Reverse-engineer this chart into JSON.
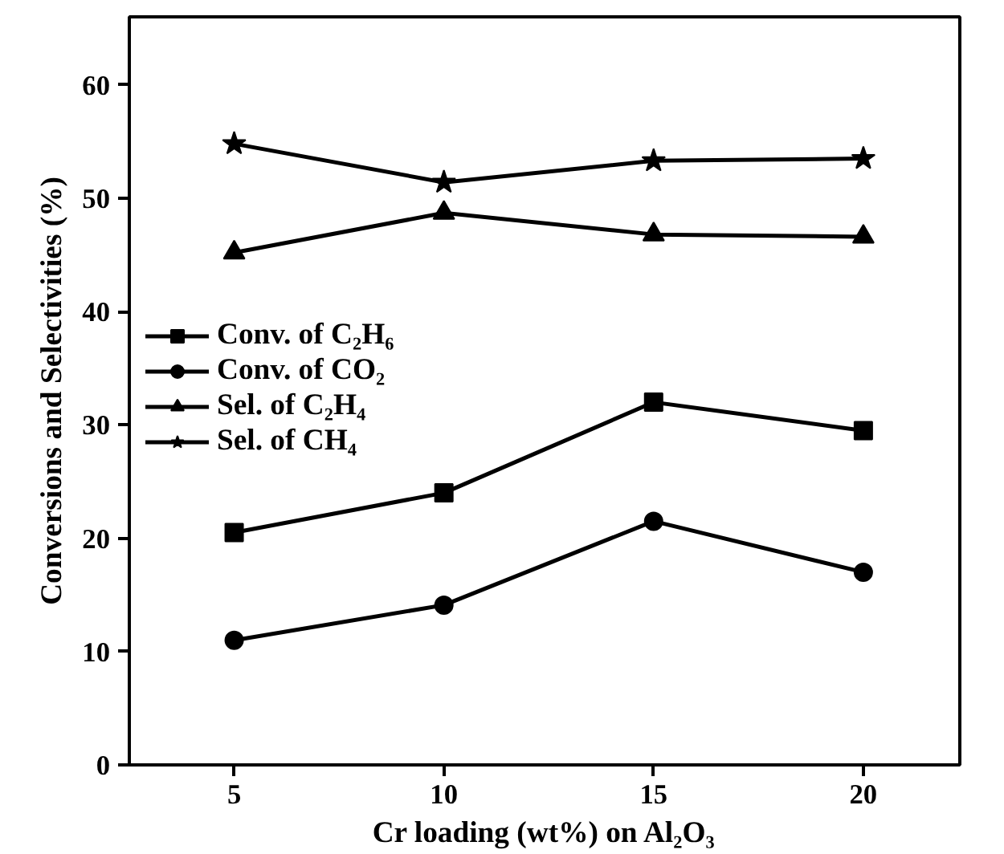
{
  "chart_data": {
    "type": "line",
    "xlabel": "Cr loading (wt%) on Al₂O₃",
    "ylabel": "Conversions and Selectivities (%)",
    "x": [
      5,
      10,
      15,
      20
    ],
    "series": [
      {
        "name": "Conv. of C₂H₆",
        "color": "#000000",
        "marker": "square",
        "values": [
          20.5,
          24.0,
          32.0,
          29.5
        ]
      },
      {
        "name": "Conv. of CO₂",
        "color": "#000000",
        "marker": "circle",
        "values": [
          11.0,
          14.1,
          21.5,
          17.0
        ]
      },
      {
        "name": "Sel. of C₂H₄",
        "color": "#000000",
        "marker": "triangle",
        "values": [
          45.2,
          48.7,
          46.8,
          46.6
        ]
      },
      {
        "name": "Sel. of CH₄",
        "color": "#000000",
        "marker": "star",
        "values": [
          54.8,
          51.4,
          53.3,
          53.5
        ]
      }
    ],
    "xlim": [
      2.5,
      22.3
    ],
    "ylim": [
      0,
      66
    ],
    "xticks": [
      5,
      10,
      15,
      20
    ],
    "yticks": [
      0,
      10,
      20,
      30,
      40,
      50,
      60
    ],
    "grid": false,
    "legend": "left",
    "line_style": "solid"
  }
}
